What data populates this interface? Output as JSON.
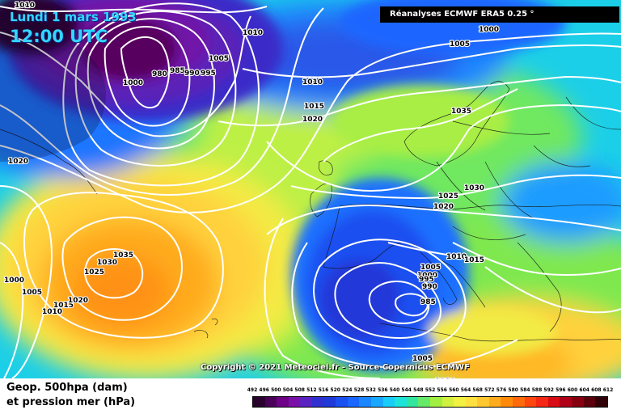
{
  "header": {
    "date_line": "Lundi 1 mars 1993",
    "time_line": "12:00 UTC",
    "source": "Réanalyses ECMWF ERA5 0.25 °"
  },
  "footer": {
    "copyright": "Copyright © 2021 Meteociel.fr - Source Copernicus ECMWF",
    "legend_line1": "Geop. 500hpa (dam)",
    "legend_line2": "et pression mer (hPa)"
  },
  "scale": {
    "ticks": [
      "492",
      "496",
      "500",
      "504",
      "508",
      "512",
      "516",
      "520",
      "524",
      "528",
      "532",
      "536",
      "540",
      "544",
      "548",
      "552",
      "556",
      "560",
      "564",
      "568",
      "572",
      "576",
      "580",
      "584",
      "588",
      "592",
      "596",
      "600",
      "604",
      "608",
      "612"
    ],
    "colors": [
      "#2a002e",
      "#4a0058",
      "#6e0088",
      "#7a10a8",
      "#5a22c0",
      "#3030d0",
      "#1f3ad8",
      "#1a4ff0",
      "#1a66ff",
      "#1a86ff",
      "#18a8ff",
      "#19cdf8",
      "#1ce4d8",
      "#32e6a0",
      "#66ea6a",
      "#a2ee40",
      "#d2f040",
      "#f2f040",
      "#ffe040",
      "#ffc830",
      "#ffab1e",
      "#ff8a0a",
      "#ff6a0a",
      "#ff460e",
      "#f42814",
      "#d80c14",
      "#b00018",
      "#880010",
      "#5c000c",
      "#300008"
    ]
  },
  "pressure_labels": [
    {
      "id": "p1010-topleft",
      "text": "1010"
    },
    {
      "id": "p1010-top",
      "text": "1010"
    },
    {
      "id": "p1000-top",
      "text": "1000"
    },
    {
      "id": "p1005-topright",
      "text": "1005"
    },
    {
      "id": "p1005-low",
      "text": "1005"
    },
    {
      "id": "p980",
      "text": "980"
    },
    {
      "id": "p985-low",
      "text": "985"
    },
    {
      "id": "p990-low",
      "text": "990"
    },
    {
      "id": "p995-low",
      "text": "995"
    },
    {
      "id": "p1000-low",
      "text": "1000"
    },
    {
      "id": "p1010-mid",
      "text": "1010"
    },
    {
      "id": "p1015-mid",
      "text": "1015"
    },
    {
      "id": "p1020-mid",
      "text": "1020"
    },
    {
      "id": "p1035-scand",
      "text": "1035"
    },
    {
      "id": "p1020-west",
      "text": "1020"
    },
    {
      "id": "p1025-eu",
      "text": "1025"
    },
    {
      "id": "p1030-eu",
      "text": "1030"
    },
    {
      "id": "p1020-eu",
      "text": "1020"
    },
    {
      "id": "p1010-italy",
      "text": "1010"
    },
    {
      "id": "p1015-italy",
      "text": "1015"
    },
    {
      "id": "p1005-med",
      "text": "1005"
    },
    {
      "id": "p1000-med",
      "text": "1000"
    },
    {
      "id": "p995-med",
      "text": "995"
    },
    {
      "id": "p990-med",
      "text": "990"
    },
    {
      "id": "p985-med",
      "text": "985"
    },
    {
      "id": "p1035-atl",
      "text": "1035"
    },
    {
      "id": "p1030-atl",
      "text": "1030"
    },
    {
      "id": "p1025-atl",
      "text": "1025"
    },
    {
      "id": "p1000-atl",
      "text": "1000"
    },
    {
      "id": "p1005-atl",
      "text": "1005"
    },
    {
      "id": "p1010-atl",
      "text": "1010"
    },
    {
      "id": "p1015-atl",
      "text": "1015"
    },
    {
      "id": "p1020-atl",
      "text": "1020"
    },
    {
      "id": "p1005-bottom",
      "text": "1005"
    },
    {
      "id": "p1010-bottom",
      "text": "1010"
    }
  ]
}
